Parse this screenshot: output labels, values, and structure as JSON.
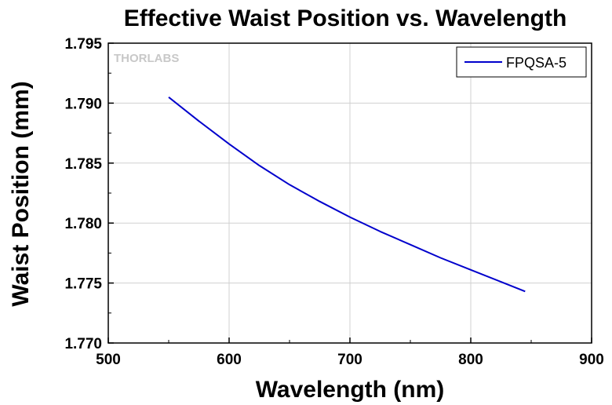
{
  "watermark": "THORLABS",
  "chart_data": {
    "type": "line",
    "title": "Effective Waist Position vs. Wavelength",
    "xlabel": "Wavelength (nm)",
    "ylabel": "Waist Position (mm)",
    "xlim": [
      500,
      900
    ],
    "ylim": [
      1.77,
      1.795
    ],
    "xticks": [
      500,
      600,
      700,
      800,
      900
    ],
    "xtick_labels": [
      "500",
      "600",
      "700",
      "800",
      "900"
    ],
    "yticks": [
      1.77,
      1.775,
      1.78,
      1.785,
      1.79,
      1.795
    ],
    "ytick_labels": [
      "1.770",
      "1.775",
      "1.780",
      "1.785",
      "1.790",
      "1.795"
    ],
    "grid": true,
    "legend_position": "top-right",
    "series": [
      {
        "name": "FPQSA-5",
        "color": "#0000cc",
        "x": [
          550,
          575,
          600,
          625,
          650,
          675,
          700,
          725,
          750,
          775,
          800,
          825,
          845
        ],
        "y": [
          1.7905,
          1.7885,
          1.7866,
          1.7848,
          1.7832,
          1.7818,
          1.7805,
          1.7793,
          1.7782,
          1.7771,
          1.7761,
          1.7751,
          1.7743
        ]
      }
    ]
  }
}
